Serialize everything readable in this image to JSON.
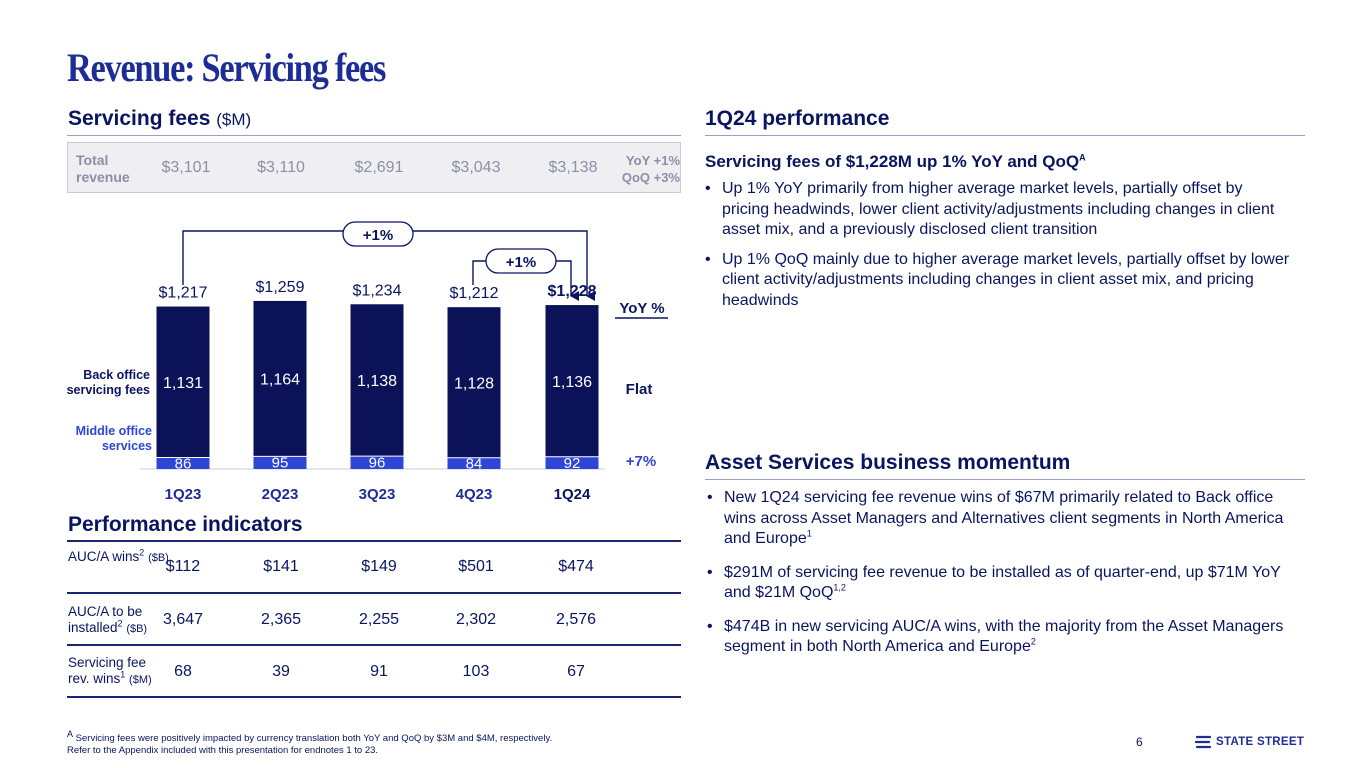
{
  "title": "Revenue: Servicing fees",
  "left": {
    "section_title": "Servicing fees",
    "section_unit": "($M)",
    "total_revenue": {
      "label": "Total revenue",
      "values": [
        "$3,101",
        "$3,110",
        "$2,691",
        "$3,043",
        "$3,138"
      ],
      "yoy": "YoY +1%",
      "qoq": "QoQ +3%"
    }
  },
  "chart_data": {
    "type": "bar",
    "stacked": true,
    "categories": [
      "1Q23",
      "2Q23",
      "3Q23",
      "4Q23",
      "1Q24"
    ],
    "series": [
      {
        "name": "Middle office services",
        "values": [
          86,
          95,
          96,
          84,
          92
        ],
        "color": "#2f45d6"
      },
      {
        "name": "Back office servicing fees",
        "values": [
          1131,
          1164,
          1138,
          1128,
          1136
        ],
        "color": "#0b1257"
      }
    ],
    "totals": [
      "$1,217",
      "$1,259",
      "$1,234",
      "$1,212",
      "$1,228"
    ],
    "segment_labels": {
      "back": [
        "1,131",
        "1,164",
        "1,138",
        "1,128",
        "1,136"
      ],
      "middle": [
        "86",
        "95",
        "96",
        "84",
        "92"
      ]
    },
    "side_labels": {
      "back": "Back office servicing fees",
      "middle": "Middle office services"
    },
    "yoy_header": "YoY %",
    "yoy_back": "Flat",
    "yoy_middle": "+7%",
    "arrows": {
      "yoy": "+1%",
      "qoq": "+1%"
    },
    "ylim": [
      0,
      1300
    ]
  },
  "performance": {
    "title": "Performance indicators",
    "rows": [
      {
        "label": "AUC/A wins",
        "sup": "2",
        "unit": "($B)",
        "values": [
          "$112",
          "$141",
          "$149",
          "$501",
          "$474"
        ]
      },
      {
        "label": "AUC/A to be installed",
        "sup": "2",
        "unit": "($B)",
        "values": [
          "3,647",
          "2,365",
          "2,255",
          "2,302",
          "2,576"
        ]
      },
      {
        "label": "Servicing fee rev. wins",
        "sup": "1",
        "unit": "($M)",
        "values": [
          "68",
          "39",
          "91",
          "103",
          "67"
        ]
      }
    ]
  },
  "right": {
    "perf_title": "1Q24 performance",
    "perf_subhead": "Servicing fees of $1,228M up 1% YoY and QoQ",
    "perf_subhead_sup": "A",
    "perf_bullets": [
      "Up 1% YoY primarily from higher average market levels, partially offset by pricing headwinds, lower client activity/adjustments including changes in client asset mix, and a previously disclosed client transition",
      "Up 1% QoQ mainly due to higher average market levels, partially offset by lower client activity/adjustments including changes in client asset mix, and pricing headwinds"
    ],
    "momentum_title": "Asset Services business momentum",
    "momentum_bullets": [
      {
        "text": "New 1Q24 servicing fee revenue wins of $67M primarily related to Back office wins across Asset Managers and Alternatives client segments in North America and Europe",
        "sup": "1"
      },
      {
        "text": "$291M of servicing fee revenue to be installed as of quarter-end, up $71M YoY and $21M QoQ",
        "sup": "1,2"
      },
      {
        "text": "$474B in new servicing AUC/A wins, with the majority from the Asset Managers segment in both North America and Europe",
        "sup": "2"
      }
    ]
  },
  "footnote": {
    "marker": "A",
    "line1": "Servicing fees were positively impacted by currency translation both YoY and QoQ by $3M and $4M, respectively.",
    "line2": "Refer to the Appendix included with this presentation for endnotes 1 to 23."
  },
  "page_number": "6",
  "logo_text": "STATE STREET",
  "colors": {
    "navy": "#0b1257",
    "blue": "#2f45d6",
    "title": "#1e2d96"
  }
}
